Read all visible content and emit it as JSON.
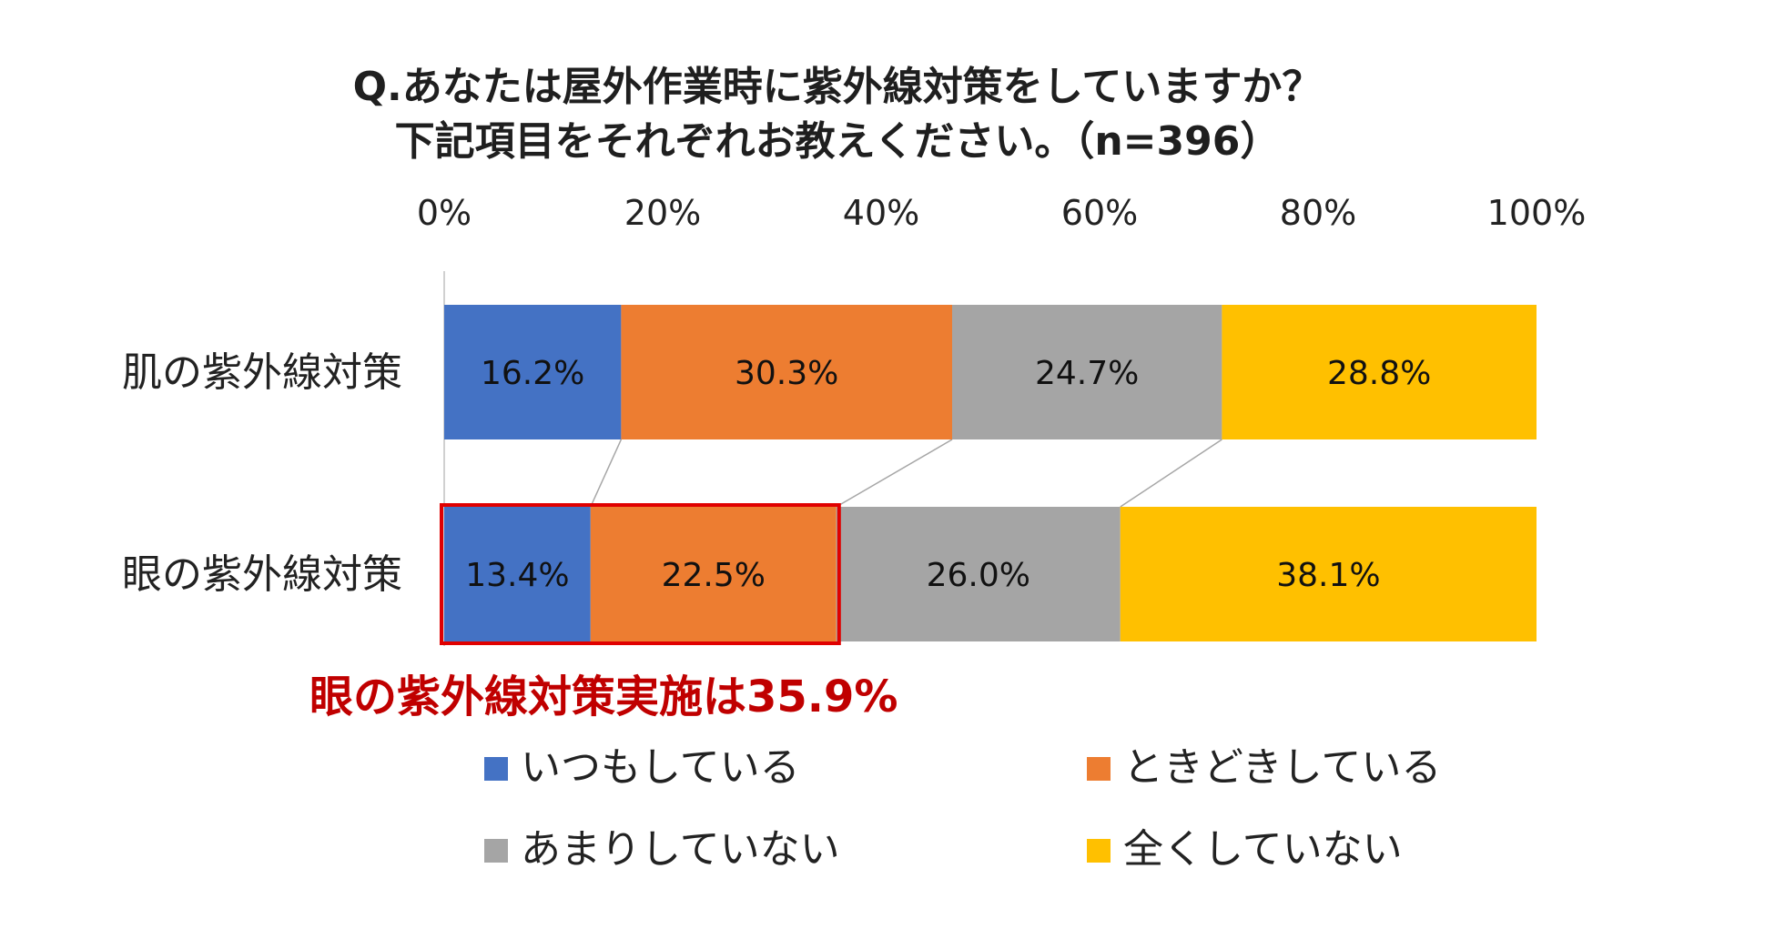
{
  "chart_data": {
    "type": "bar",
    "orientation": "horizontal-stacked-100",
    "title": [
      "Q.あなたは屋外作業時に紫外線対策をしていますか？",
      "下記項目をそれぞれお教えください。（n=396）"
    ],
    "categories": [
      "肌の紫外線対策",
      "眼の紫外線対策"
    ],
    "series": [
      {
        "name": "いつもしている",
        "values": [
          16.2,
          13.4
        ],
        "labels": [
          "16.2%",
          "13.4%"
        ],
        "color": "#4472c4"
      },
      {
        "name": "ときどきしている",
        "values": [
          30.3,
          22.5
        ],
        "labels": [
          "30.3%",
          "22.5%"
        ],
        "color": "#ed7d31"
      },
      {
        "name": "あまりしていない",
        "values": [
          24.7,
          26.0
        ],
        "labels": [
          "24.7%",
          "26.0%"
        ],
        "color": "#a5a5a5"
      },
      {
        "name": "全くしていない",
        "values": [
          28.8,
          38.1
        ],
        "labels": [
          "28.8%",
          "38.1%"
        ],
        "color": "#ffc000"
      }
    ],
    "xlim": [
      0,
      100
    ],
    "xticks": [
      "0%",
      "20%",
      "40%",
      "60%",
      "80%",
      "100%"
    ],
    "xtick_values": [
      0,
      20,
      40,
      60,
      80,
      100
    ],
    "highlight": {
      "category_index": 1,
      "from": 0,
      "to": 35.9,
      "color": "#e00000"
    },
    "annotation": "眼の紫外線対策実施は35.9%",
    "annotation_color": "#c00000",
    "legend_position": "bottom"
  }
}
